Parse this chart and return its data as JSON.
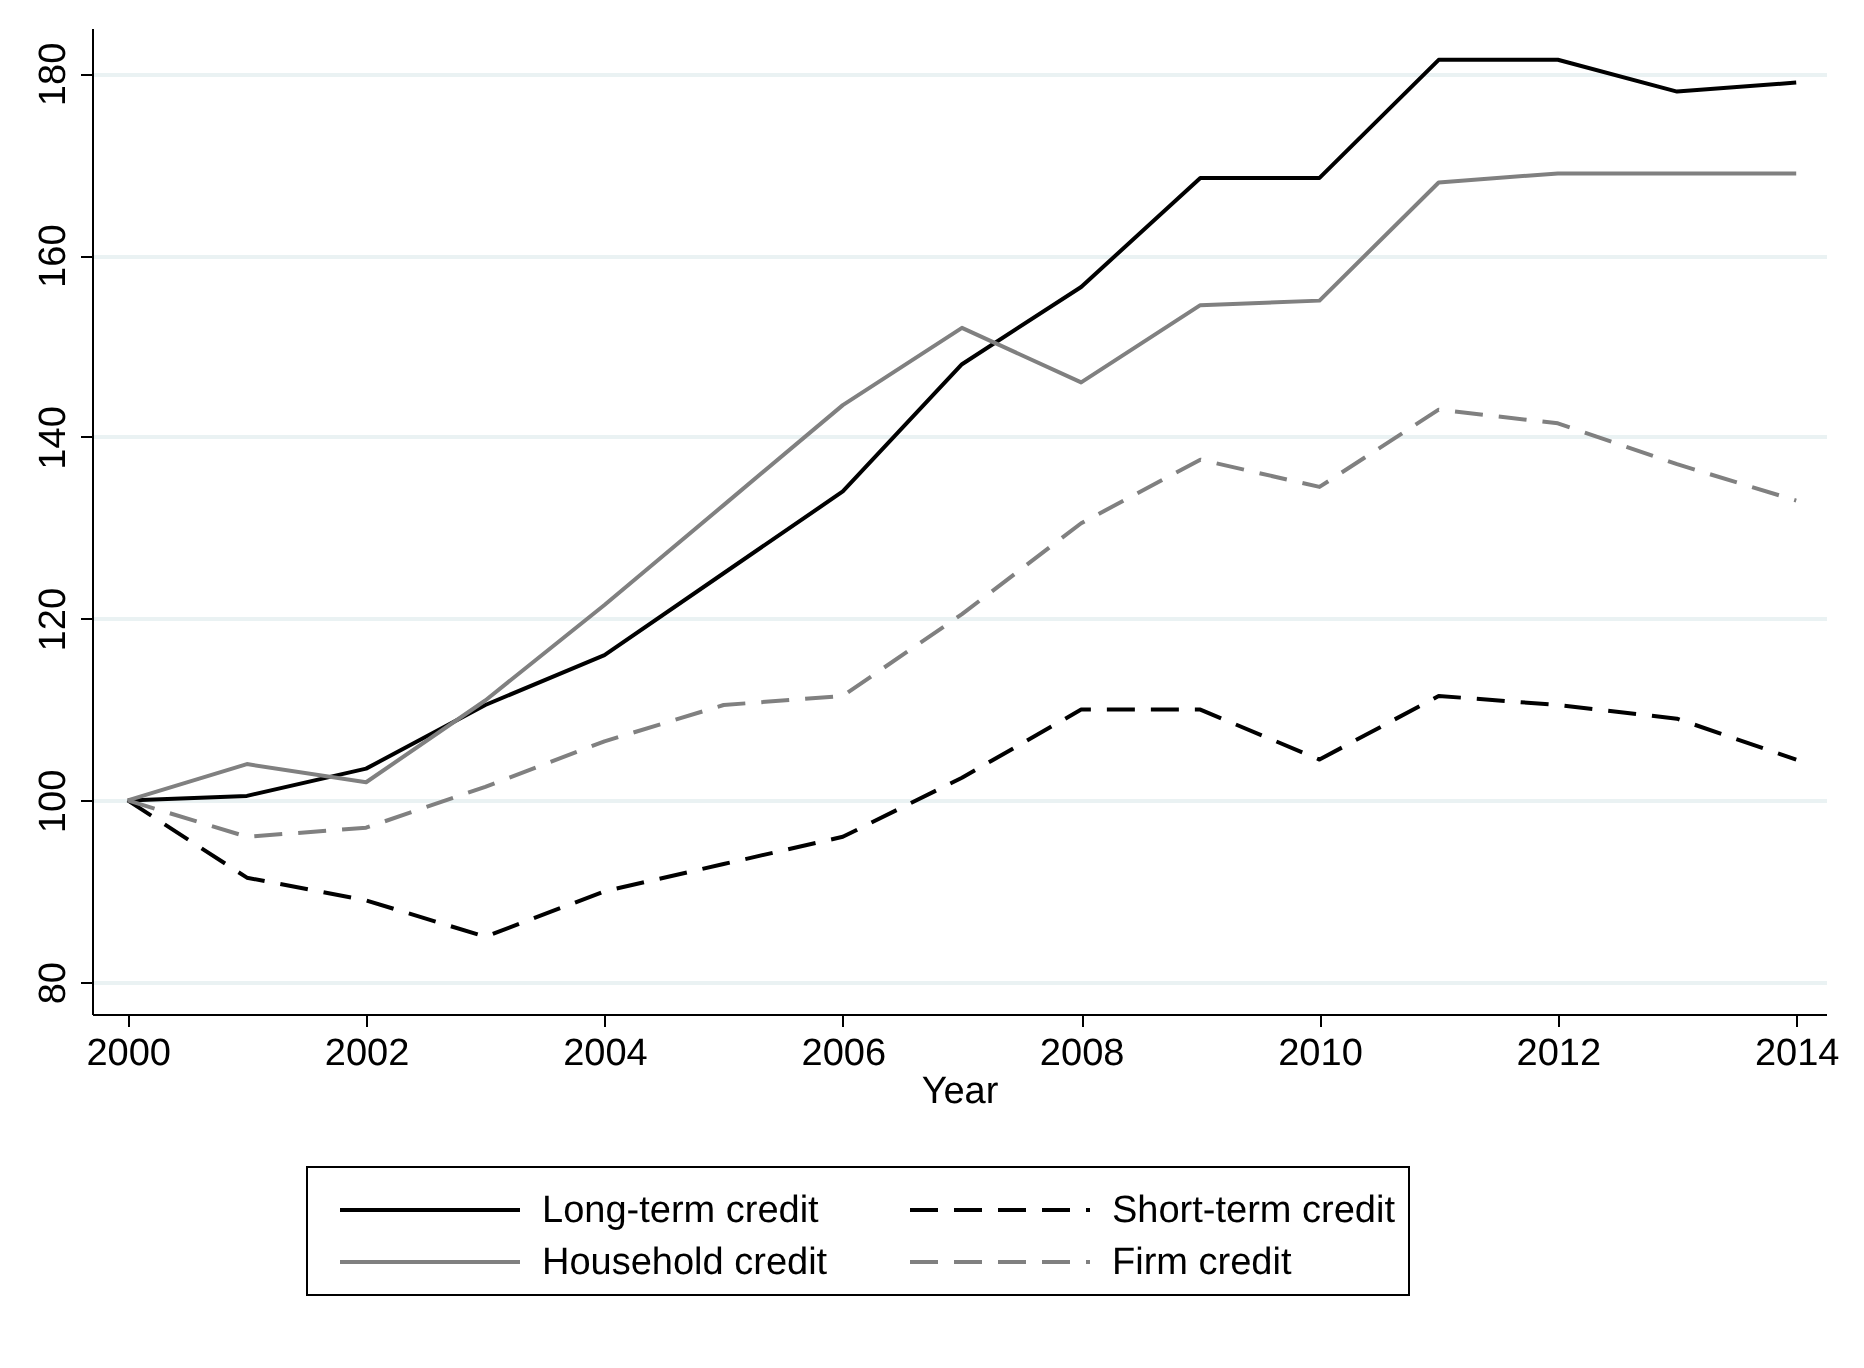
{
  "chart_data": {
    "type": "line",
    "xlabel": "Year",
    "x": [
      2000,
      2001,
      2002,
      2003,
      2004,
      2005,
      2006,
      2007,
      2008,
      2009,
      2010,
      2011,
      2012,
      2013,
      2014
    ],
    "series": [
      {
        "name": "Long-term credit",
        "color": "#000000",
        "line_style": "solid",
        "values": [
          100,
          100.5,
          103.5,
          110.5,
          116,
          125,
          134,
          148,
          156.5,
          168.5,
          168.5,
          181.5,
          181.5,
          178,
          179
        ]
      },
      {
        "name": "Short-term credit",
        "color": "#000000",
        "line_style": "dashed",
        "values": [
          100,
          91.5,
          89,
          85,
          90,
          93,
          96,
          102.5,
          110,
          110,
          104.5,
          111.5,
          110.5,
          109,
          104.5
        ]
      },
      {
        "name": "Household credit",
        "color": "#808080",
        "line_style": "solid",
        "values": [
          100,
          104,
          102,
          111,
          121.5,
          132.5,
          143.5,
          152,
          146,
          154.5,
          155,
          168,
          169,
          169,
          169
        ]
      },
      {
        "name": "Firm credit",
        "color": "#808080",
        "line_style": "dashed",
        "values": [
          100,
          96,
          97,
          101.5,
          106.5,
          110.5,
          111.5,
          120.5,
          130.5,
          137.5,
          134.5,
          143,
          141.5,
          137,
          133
        ]
      }
    ],
    "xlim": [
      1999.7,
      2014.25
    ],
    "ylim": [
      76.5,
      185
    ],
    "xticks": [
      2000,
      2002,
      2004,
      2006,
      2008,
      2010,
      2012,
      2014
    ],
    "yticks": [
      80,
      100,
      120,
      140,
      160,
      180
    ],
    "grid": "y",
    "legend": "bottom",
    "marker": "none"
  }
}
